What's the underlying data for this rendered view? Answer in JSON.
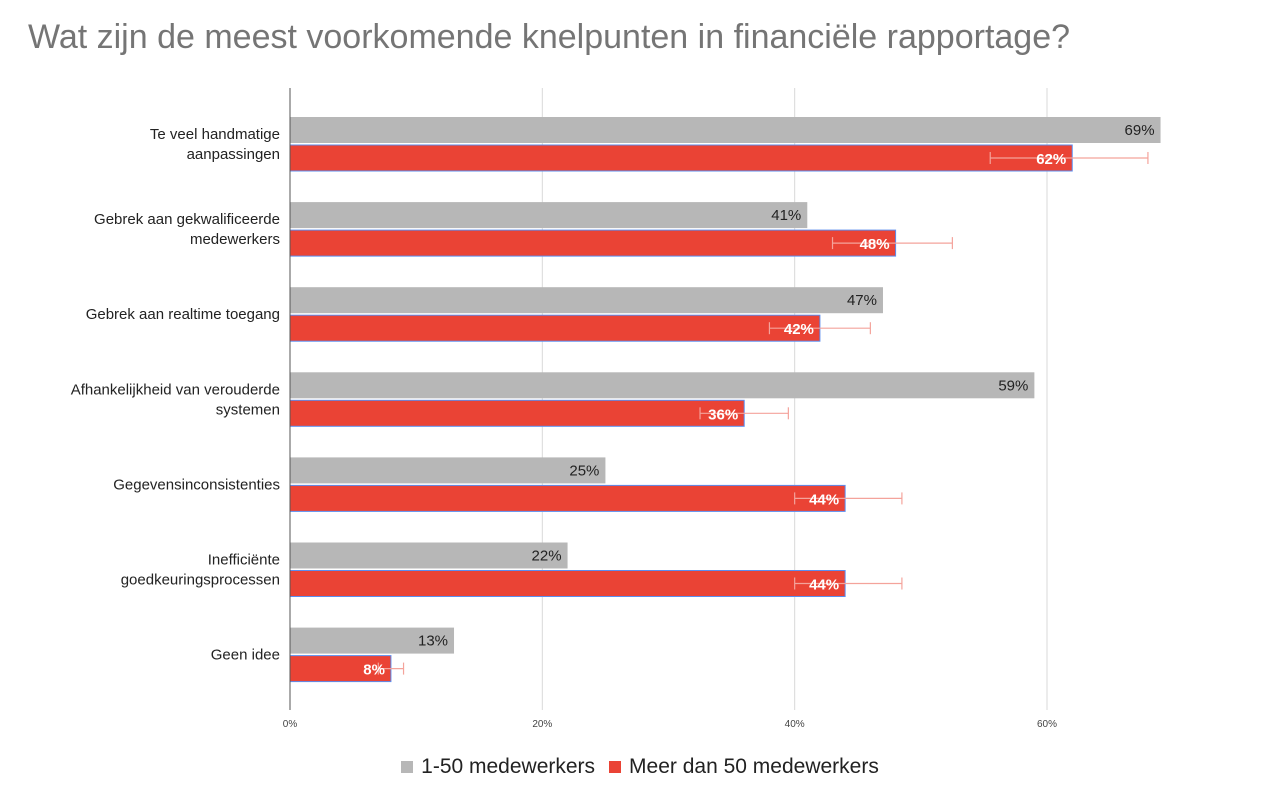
{
  "chart_data": {
    "type": "bar",
    "orientation": "horizontal",
    "title": "Wat zijn de meest voorkomende knelpunten in financiële rapportage?",
    "categories": [
      [
        "Te veel handmatige",
        "aanpassingen"
      ],
      [
        "Gebrek aan gekwalificeerde",
        "medewerkers"
      ],
      [
        "Gebrek aan realtime toegang"
      ],
      [
        "Afhankelijkheid van verouderde",
        "systemen"
      ],
      [
        "Gegevensinconsistenties"
      ],
      [
        "Inefficiënte",
        "goedkeuringsprocessen"
      ],
      [
        "Geen idee"
      ]
    ],
    "series": [
      {
        "name": "1-50 medewerkers",
        "color": "#b7b7b7",
        "values": [
          69,
          41,
          47,
          59,
          25,
          22,
          13
        ],
        "labels": [
          "69%",
          "41%",
          "47%",
          "59%",
          "25%",
          "22%",
          "13%"
        ]
      },
      {
        "name": "Meer dan 50 medewerkers",
        "color": "#ea4335",
        "values": [
          62,
          48,
          42,
          36,
          44,
          44,
          8
        ],
        "labels": [
          "62%",
          "48%",
          "42%",
          "36%",
          "44%",
          "44%",
          "8%"
        ],
        "error_low": [
          55.5,
          43,
          38,
          32.5,
          40,
          40,
          7
        ],
        "error_high": [
          68,
          52.5,
          46,
          39.5,
          48.5,
          48.5,
          9
        ]
      }
    ],
    "xlim": [
      0,
      70
    ],
    "xticks": [
      0,
      20,
      40,
      60
    ],
    "xtick_labels": [
      "0%",
      "20%",
      "40%",
      "60%"
    ],
    "grid": true,
    "legend_position": "bottom"
  }
}
